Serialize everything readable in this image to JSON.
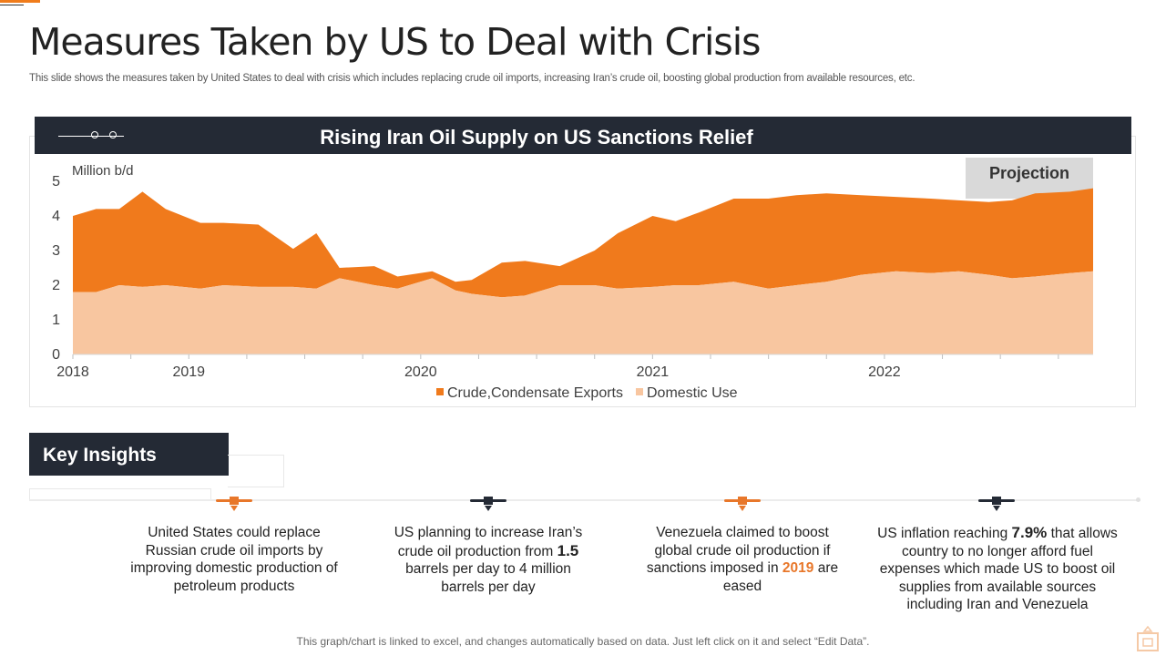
{
  "page": {
    "title": "Measures Taken by US to Deal with Crisis",
    "subtitle": "This slide shows the measures taken by United States to  deal with crisis which includes replacing crude oil imports, increasing Iran’s crude oil, boosting global production from available resources, etc.",
    "footer": "This graph/chart is linked to excel, and changes automatically based on data.  Just left click on it and select “Edit Data”."
  },
  "colors": {
    "exports": "#f07a1c",
    "domestic": "#f8c6a0",
    "header_bg": "#242a35",
    "accent": "#e8772a",
    "projection_bg": "#d9d9d9"
  },
  "chart_data": {
    "type": "area",
    "stacked": true,
    "title": "Rising Iran Oil Supply on US Sanctions Relief",
    "ylabel": "Million b/d",
    "ylim": [
      0,
      5
    ],
    "yticks": [
      0,
      1,
      2,
      3,
      4,
      5
    ],
    "xrange": [
      2018.0,
      2022.4
    ],
    "xticks": [
      {
        "value": 2018.0,
        "label": "2018"
      },
      {
        "value": 2018.5,
        "label": "2019"
      },
      {
        "value": 2019.5,
        "label": "2020"
      },
      {
        "value": 2020.5,
        "label": "2021"
      },
      {
        "value": 2021.5,
        "label": "2022"
      }
    ],
    "minor_ticks": [
      2018.25,
      2018.75,
      2019.0,
      2019.25,
      2019.75,
      2020.0,
      2020.25,
      2020.75,
      2021.0,
      2021.25,
      2021.75,
      2022.0,
      2022.25
    ],
    "x": [
      2018.0,
      2018.1,
      2018.2,
      2018.3,
      2018.4,
      2018.55,
      2018.65,
      2018.8,
      2018.95,
      2019.05,
      2019.15,
      2019.3,
      2019.4,
      2019.55,
      2019.65,
      2019.72,
      2019.85,
      2019.95,
      2020.1,
      2020.25,
      2020.35,
      2020.5,
      2020.6,
      2020.7,
      2020.85,
      2021.0,
      2021.12,
      2021.25,
      2021.4,
      2021.55,
      2021.7,
      2021.82,
      2021.95,
      2022.05,
      2022.15,
      2022.3,
      2022.4
    ],
    "series": [
      {
        "name": "Domestic Use",
        "values": [
          1.8,
          1.8,
          2.0,
          1.95,
          2.0,
          1.9,
          2.0,
          1.95,
          1.95,
          1.9,
          2.2,
          2.0,
          1.9,
          2.2,
          1.85,
          1.75,
          1.65,
          1.7,
          2.0,
          2.0,
          1.9,
          1.95,
          2.0,
          2.0,
          2.1,
          1.9,
          2.0,
          2.1,
          2.3,
          2.4,
          2.35,
          2.4,
          2.3,
          2.2,
          2.25,
          2.35,
          2.4
        ]
      },
      {
        "name": "Crude,Condensate Exports",
        "values": [
          2.2,
          2.4,
          2.2,
          2.75,
          2.2,
          1.9,
          1.8,
          1.8,
          1.1,
          1.6,
          0.3,
          0.55,
          0.35,
          0.2,
          0.25,
          0.4,
          1.0,
          1.0,
          0.55,
          1.0,
          1.6,
          2.05,
          1.85,
          2.1,
          2.4,
          2.6,
          2.6,
          2.55,
          2.3,
          2.15,
          2.15,
          2.05,
          2.1,
          2.25,
          2.4,
          2.35,
          2.4
        ]
      }
    ],
    "legend": [
      "Crude,Condensate Exports",
      "Domestic Use"
    ],
    "legend_position": "bottom",
    "annotation": {
      "label": "Projection",
      "x_start": 2021.85,
      "x_end": 2022.4
    }
  },
  "insights": {
    "heading": "Key Insights",
    "items": [
      {
        "text": "United States could replace Russian crude oil imports by improving domestic production of petroleum products"
      },
      {
        "pre": "US planning to increase Iran’s crude oil production from ",
        "highlight": "1.5",
        "post": " barrels per day to 4 million barrels per day"
      },
      {
        "pre": "Venezuela claimed to boost global crude oil production if sanctions imposed in ",
        "highlight": "2019",
        "post": " are eased"
      },
      {
        "pre": "US inflation reaching ",
        "highlight": "7.9%",
        "post": " that allows country to no longer afford fuel expenses which made US to boost oil supplies from available sources including Iran and Venezuela"
      }
    ]
  }
}
